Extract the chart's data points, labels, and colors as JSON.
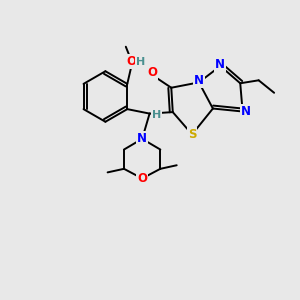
{
  "background_color": "#e8e8e8",
  "atom_colors": {
    "C": "#000000",
    "H": "#4a9090",
    "N": "#0000ff",
    "O": "#ff0000",
    "S": "#ccaa00"
  },
  "bond_color": "#000000",
  "lw": 1.4
}
